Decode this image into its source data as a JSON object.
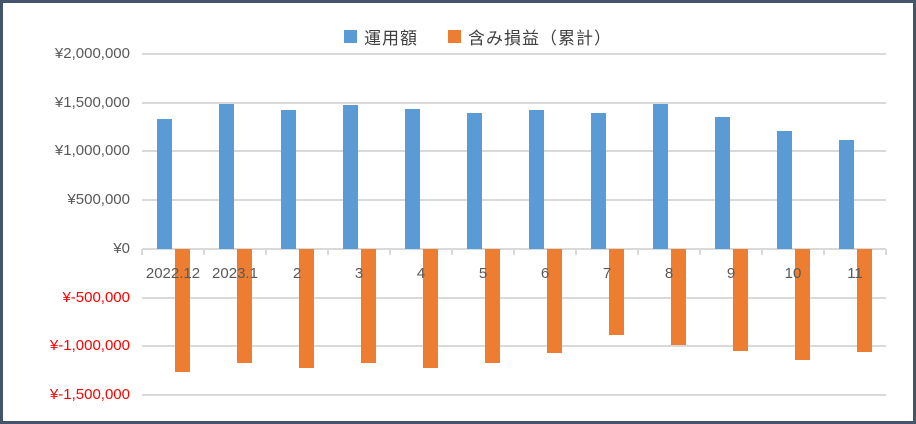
{
  "chart": {
    "title": "",
    "colors": {
      "series_blue": "#5B9BD5",
      "series_orange": "#ED7D31",
      "chart_border": "#44546A",
      "gridline": "#D9D9D9",
      "axis_label": "#595959",
      "negative_label": "#FF0000",
      "legend_text": "#404040"
    }
  },
  "chart_data": {
    "type": "bar",
    "title": "",
    "xlabel": "",
    "ylabel": "",
    "legend_position": "top",
    "grid": true,
    "ylim": [
      -1500000,
      2000000
    ],
    "y_tick_interval": 500000,
    "y_tick_labels": [
      "¥2,000,000",
      "¥1,500,000",
      "¥1,000,000",
      "¥500,000",
      "¥0",
      "¥-500,000",
      "¥-1,000,000",
      "¥-1,500,000"
    ],
    "categories": [
      "2022.12",
      "2023.1",
      "2",
      "3",
      "4",
      "5",
      "6",
      "7",
      "8",
      "9",
      "10",
      "11"
    ],
    "series": [
      {
        "name": "運用額",
        "color": "#5B9BD5",
        "values": [
          1330000,
          1490000,
          1430000,
          1480000,
          1440000,
          1390000,
          1430000,
          1390000,
          1490000,
          1350000,
          1210000,
          1120000
        ]
      },
      {
        "name": "含み損益（累計）",
        "color": "#ED7D31",
        "values": [
          -1260000,
          -1170000,
          -1220000,
          -1170000,
          -1220000,
          -1170000,
          -1070000,
          -880000,
          -990000,
          -1050000,
          -1140000,
          -1060000
        ]
      }
    ]
  }
}
